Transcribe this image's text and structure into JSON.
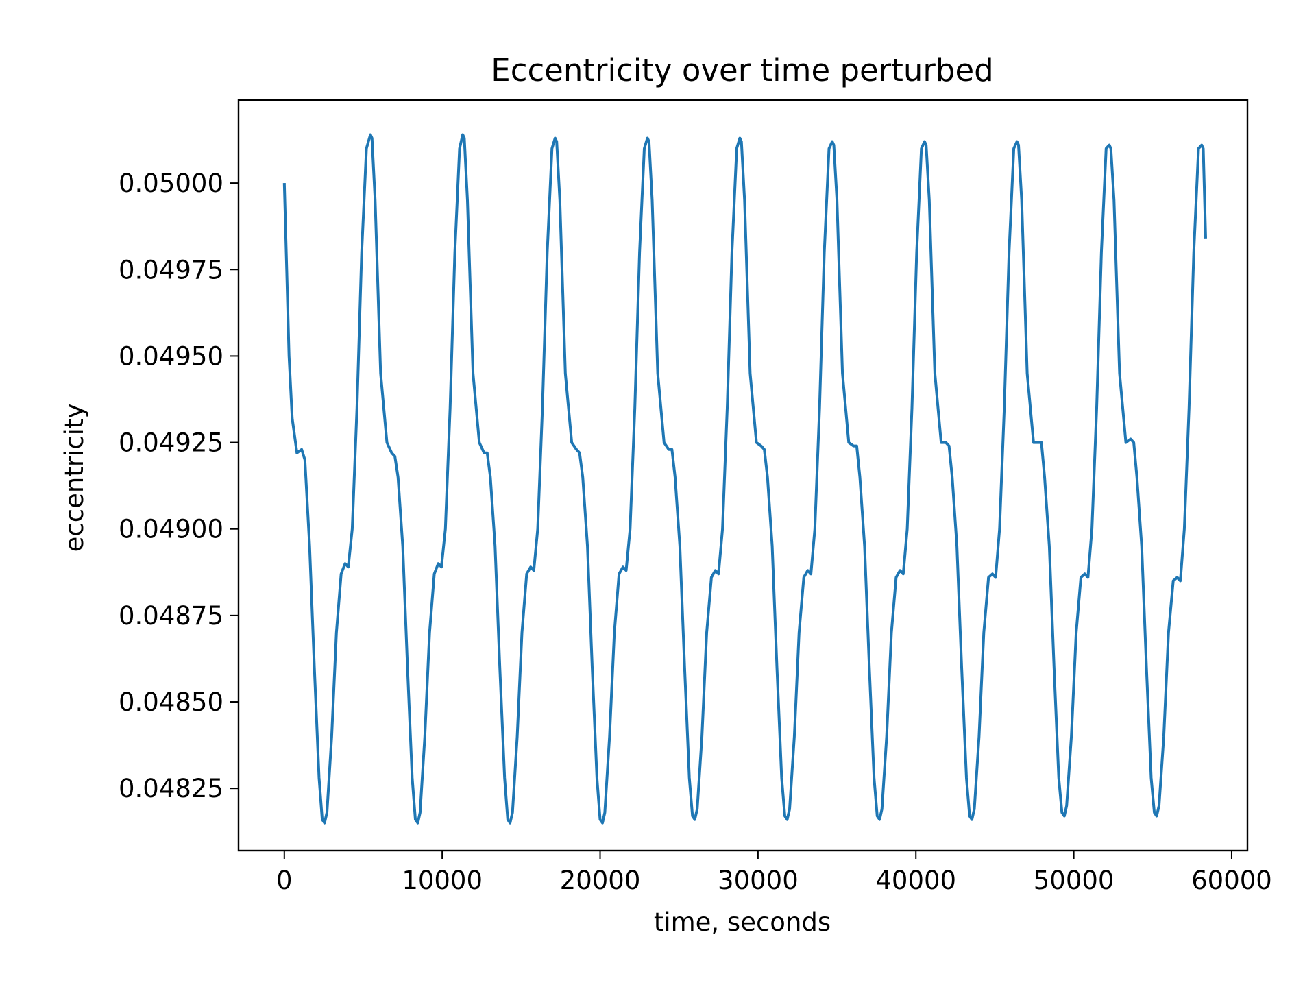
{
  "chart_data": {
    "type": "line",
    "title": "Eccentricity over time perturbed",
    "xlabel": "time, seconds",
    "ylabel": "eccentricity",
    "xlim": [
      -2900,
      61000
    ],
    "ylim": [
      0.04807,
      0.05024
    ],
    "x_ticks": [
      0,
      10000,
      20000,
      30000,
      40000,
      50000,
      60000
    ],
    "x_tick_labels": [
      "0",
      "10000",
      "20000",
      "30000",
      "40000",
      "50000",
      "60000"
    ],
    "y_ticks": [
      0.04825,
      0.0485,
      0.04875,
      0.049,
      0.04925,
      0.0495,
      0.04975,
      0.05
    ],
    "y_tick_labels": [
      "0.04825",
      "0.04850",
      "0.04875",
      "0.04900",
      "0.04925",
      "0.04950",
      "0.04975",
      "0.05000"
    ],
    "grid": false,
    "line_color": "#1f77b4",
    "series": [
      {
        "x": [
          0,
          150,
          300,
          500,
          800,
          1100,
          1300,
          1600,
          1900,
          2200,
          2400,
          2550,
          2700,
          3000,
          3300,
          3600,
          3850,
          4050,
          4300,
          4600,
          4900,
          5200,
          5450,
          5550,
          5750,
          6100,
          6500,
          6800,
          7000,
          7200,
          7500,
          7800,
          8100,
          8300,
          8450,
          8600,
          8900,
          9200,
          9500,
          9750,
          9950,
          10200,
          10500,
          10800,
          11100,
          11300,
          11400,
          11600,
          11950,
          12350,
          12650,
          12850,
          13050,
          13350,
          13650,
          13950,
          14150,
          14300,
          14450,
          14750,
          15050,
          15350,
          15600,
          15800,
          16050,
          16350,
          16650,
          16950,
          17150,
          17250,
          17450,
          17800,
          18200,
          18500,
          18700,
          18900,
          19200,
          19500,
          19800,
          20000,
          20150,
          20300,
          20600,
          20900,
          21200,
          21450,
          21650,
          21900,
          22200,
          22500,
          22800,
          23000,
          23100,
          23300,
          23650,
          24050,
          24350,
          24550,
          24750,
          25050,
          25350,
          25650,
          25850,
          26000,
          26150,
          26450,
          26750,
          27050,
          27300,
          27500,
          27750,
          28050,
          28350,
          28650,
          28850,
          28950,
          29150,
          29500,
          29900,
          30200,
          30400,
          30600,
          30900,
          31200,
          31500,
          31700,
          31850,
          32000,
          32300,
          32600,
          32900,
          33150,
          33350,
          33600,
          33900,
          34200,
          34500,
          34700,
          34800,
          35000,
          35350,
          35750,
          36050,
          36250,
          36450,
          36750,
          37050,
          37350,
          37550,
          37700,
          37850,
          38150,
          38450,
          38750,
          39000,
          39200,
          39450,
          39750,
          40050,
          40350,
          40550,
          40650,
          40850,
          41200,
          41600,
          41900,
          42100,
          42300,
          42600,
          42900,
          43200,
          43400,
          43550,
          43700,
          44000,
          44300,
          44600,
          44850,
          45050,
          45300,
          45600,
          45900,
          46200,
          46400,
          46500,
          46700,
          47050,
          47450,
          47750,
          47950,
          48150,
          48450,
          48750,
          49050,
          49250,
          49400,
          49550,
          49850,
          50150,
          50450,
          50700,
          50900,
          51150,
          51450,
          51750,
          52050,
          52250,
          52350,
          52550,
          52900,
          53300,
          53600,
          53800,
          54000,
          54300,
          54600,
          54900,
          55100,
          55250,
          55400,
          55700,
          56000,
          56300,
          56550,
          56750,
          57000,
          57300,
          57600,
          57900,
          58100,
          58200,
          58350
        ],
        "y": [
          0.05,
          0.04975,
          0.0495,
          0.04932,
          0.04922,
          0.04923,
          0.0492,
          0.04895,
          0.0486,
          0.04828,
          0.04816,
          0.04815,
          0.04818,
          0.0484,
          0.0487,
          0.04887,
          0.0489,
          0.04889,
          0.049,
          0.04935,
          0.0498,
          0.0501,
          0.05014,
          0.05013,
          0.04995,
          0.04945,
          0.04925,
          0.04922,
          0.04921,
          0.04915,
          0.04895,
          0.0486,
          0.04828,
          0.04816,
          0.04815,
          0.04818,
          0.0484,
          0.0487,
          0.04887,
          0.0489,
          0.04889,
          0.049,
          0.04935,
          0.0498,
          0.0501,
          0.05014,
          0.05013,
          0.04995,
          0.04945,
          0.04925,
          0.04922,
          0.04922,
          0.04915,
          0.04895,
          0.0486,
          0.04828,
          0.04816,
          0.04815,
          0.04818,
          0.0484,
          0.0487,
          0.04887,
          0.04889,
          0.04888,
          0.049,
          0.04935,
          0.0498,
          0.0501,
          0.05013,
          0.05012,
          0.04995,
          0.04945,
          0.04925,
          0.04923,
          0.04922,
          0.04915,
          0.04895,
          0.0486,
          0.04828,
          0.04816,
          0.04815,
          0.04818,
          0.0484,
          0.0487,
          0.04887,
          0.04889,
          0.04888,
          0.049,
          0.04935,
          0.0498,
          0.0501,
          0.05013,
          0.05012,
          0.04995,
          0.04945,
          0.04925,
          0.04923,
          0.04923,
          0.04915,
          0.04895,
          0.0486,
          0.04828,
          0.04817,
          0.04816,
          0.04819,
          0.0484,
          0.0487,
          0.04886,
          0.04888,
          0.04887,
          0.049,
          0.04935,
          0.0498,
          0.0501,
          0.05013,
          0.05012,
          0.04995,
          0.04945,
          0.04925,
          0.04924,
          0.04923,
          0.04915,
          0.04895,
          0.0486,
          0.04828,
          0.04817,
          0.04816,
          0.04819,
          0.0484,
          0.0487,
          0.04886,
          0.04888,
          0.04887,
          0.049,
          0.04935,
          0.0498,
          0.0501,
          0.05012,
          0.05011,
          0.04995,
          0.04945,
          0.04925,
          0.04924,
          0.04924,
          0.04915,
          0.04895,
          0.0486,
          0.04828,
          0.04817,
          0.04816,
          0.04819,
          0.0484,
          0.0487,
          0.04886,
          0.04888,
          0.04887,
          0.049,
          0.04935,
          0.0498,
          0.0501,
          0.05012,
          0.05011,
          0.04995,
          0.04945,
          0.04925,
          0.04925,
          0.04924,
          0.04915,
          0.04895,
          0.0486,
          0.04828,
          0.04817,
          0.04816,
          0.04819,
          0.0484,
          0.0487,
          0.04886,
          0.04887,
          0.04886,
          0.049,
          0.04935,
          0.0498,
          0.0501,
          0.05012,
          0.05011,
          0.04995,
          0.04945,
          0.04925,
          0.04925,
          0.04925,
          0.04915,
          0.04895,
          0.0486,
          0.04828,
          0.04818,
          0.04817,
          0.0482,
          0.0484,
          0.0487,
          0.04886,
          0.04887,
          0.04886,
          0.049,
          0.04935,
          0.0498,
          0.0501,
          0.05011,
          0.0501,
          0.04995,
          0.04945,
          0.04925,
          0.04926,
          0.04925,
          0.04915,
          0.04895,
          0.0486,
          0.04828,
          0.04818,
          0.04817,
          0.0482,
          0.0484,
          0.0487,
          0.04885,
          0.04886,
          0.04885,
          0.049,
          0.04935,
          0.0498,
          0.0501,
          0.05011,
          0.0501,
          0.04984
        ]
      }
    ]
  }
}
